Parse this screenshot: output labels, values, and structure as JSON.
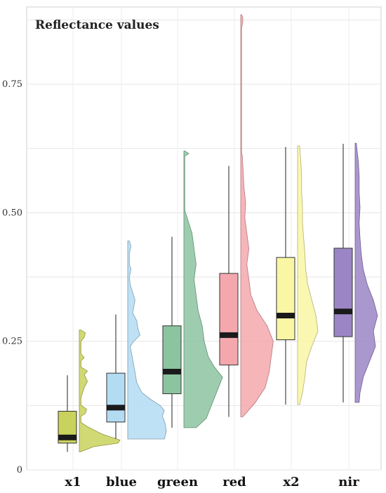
{
  "chart_data": {
    "type": "raincloud",
    "title": "Reflectance values",
    "xlabel": "",
    "ylabel": "",
    "ylim": [
      0,
      0.9
    ],
    "yticks": [
      0,
      0.25,
      0.5,
      0.75
    ],
    "ytick_labels": [
      "0",
      "0.25",
      "0.50",
      "0.75"
    ],
    "grid": true,
    "categories": [
      "x1",
      "blue",
      "green",
      "red",
      "x2",
      "nir"
    ],
    "series": [
      {
        "label": "x1",
        "color": "#c9d25c",
        "box": {
          "lower_whisker": 0.035,
          "q1": 0.052,
          "median": 0.063,
          "q3": 0.114,
          "upper_whisker": 0.184
        },
        "density": [
          [
            0.035,
            0.02
          ],
          [
            0.045,
            0.35
          ],
          [
            0.052,
            0.95
          ],
          [
            0.058,
            1.0
          ],
          [
            0.063,
            0.8
          ],
          [
            0.07,
            0.55
          ],
          [
            0.078,
            0.35
          ],
          [
            0.084,
            0.2
          ],
          [
            0.092,
            0.04
          ],
          [
            0.104,
            0.04
          ],
          [
            0.11,
            0.15
          ],
          [
            0.118,
            0.18
          ],
          [
            0.126,
            0.04
          ],
          [
            0.14,
            0.04
          ],
          [
            0.16,
            0.12
          ],
          [
            0.172,
            0.2
          ],
          [
            0.185,
            0.12
          ],
          [
            0.192,
            0.2
          ],
          [
            0.2,
            0.04
          ],
          [
            0.212,
            0.04
          ],
          [
            0.218,
            0.12
          ],
          [
            0.226,
            0.04
          ],
          [
            0.25,
            0.04
          ],
          [
            0.258,
            0.12
          ],
          [
            0.266,
            0.15
          ],
          [
            0.272,
            0.04
          ]
        ]
      },
      {
        "label": "blue",
        "color": "#b3dcf3",
        "box": {
          "lower_whisker": 0.06,
          "q1": 0.093,
          "median": 0.121,
          "q3": 0.188,
          "upper_whisker": 0.302
        },
        "density": [
          [
            0.06,
            0.9
          ],
          [
            0.075,
            0.95
          ],
          [
            0.09,
            0.92
          ],
          [
            0.105,
            0.85
          ],
          [
            0.115,
            0.9
          ],
          [
            0.125,
            0.8
          ],
          [
            0.135,
            0.6
          ],
          [
            0.15,
            0.35
          ],
          [
            0.17,
            0.22
          ],
          [
            0.19,
            0.18
          ],
          [
            0.215,
            0.12
          ],
          [
            0.24,
            0.06
          ],
          [
            0.25,
            0.15
          ],
          [
            0.262,
            0.3
          ],
          [
            0.275,
            0.25
          ],
          [
            0.29,
            0.22
          ],
          [
            0.305,
            0.12
          ],
          [
            0.33,
            0.18
          ],
          [
            0.345,
            0.12
          ],
          [
            0.36,
            0.06
          ],
          [
            0.375,
            0.04
          ],
          [
            0.39,
            0.08
          ],
          [
            0.4,
            0.04
          ],
          [
            0.42,
            0.04
          ],
          [
            0.435,
            0.08
          ],
          [
            0.445,
            0.04
          ]
        ]
      },
      {
        "label": "green",
        "color": "#8cc4a0",
        "box": {
          "lower_whisker": 0.082,
          "q1": 0.148,
          "median": 0.191,
          "q3": 0.28,
          "upper_whisker": 0.453
        },
        "density": [
          [
            0.082,
            0.3
          ],
          [
            0.1,
            0.55
          ],
          [
            0.12,
            0.65
          ],
          [
            0.14,
            0.75
          ],
          [
            0.16,
            0.85
          ],
          [
            0.18,
            0.95
          ],
          [
            0.2,
            0.75
          ],
          [
            0.22,
            0.6
          ],
          [
            0.25,
            0.5
          ],
          [
            0.28,
            0.45
          ],
          [
            0.31,
            0.35
          ],
          [
            0.34,
            0.3
          ],
          [
            0.37,
            0.25
          ],
          [
            0.4,
            0.3
          ],
          [
            0.43,
            0.25
          ],
          [
            0.46,
            0.2
          ],
          [
            0.48,
            0.12
          ],
          [
            0.5,
            0.04
          ],
          [
            0.505,
            0.02
          ],
          [
            0.61,
            0.02
          ],
          [
            0.615,
            0.12
          ],
          [
            0.62,
            0.02
          ]
        ]
      },
      {
        "label": "red",
        "color": "#f4a8ad",
        "box": {
          "lower_whisker": 0.103,
          "q1": 0.204,
          "median": 0.262,
          "q3": 0.382,
          "upper_whisker": 0.591
        },
        "density": [
          [
            0.103,
            0.05
          ],
          [
            0.13,
            0.35
          ],
          [
            0.16,
            0.6
          ],
          [
            0.19,
            0.7
          ],
          [
            0.22,
            0.75
          ],
          [
            0.25,
            0.8
          ],
          [
            0.28,
            0.65
          ],
          [
            0.31,
            0.4
          ],
          [
            0.34,
            0.25
          ],
          [
            0.37,
            0.2
          ],
          [
            0.4,
            0.15
          ],
          [
            0.43,
            0.2
          ],
          [
            0.46,
            0.15
          ],
          [
            0.49,
            0.1
          ],
          [
            0.52,
            0.12
          ],
          [
            0.55,
            0.08
          ],
          [
            0.58,
            0.06
          ],
          [
            0.61,
            0.04
          ],
          [
            0.618,
            0.02
          ],
          [
            0.86,
            0.02
          ],
          [
            0.87,
            0.05
          ],
          [
            0.88,
            0.05
          ],
          [
            0.885,
            0.02
          ]
        ]
      },
      {
        "label": "x2",
        "color": "#f9f6a4",
        "box": {
          "lower_whisker": 0.127,
          "q1": 0.253,
          "median": 0.3,
          "q3": 0.413,
          "upper_whisker": 0.628
        },
        "density": [
          [
            0.127,
            0.05
          ],
          [
            0.15,
            0.12
          ],
          [
            0.18,
            0.18
          ],
          [
            0.21,
            0.22
          ],
          [
            0.24,
            0.35
          ],
          [
            0.27,
            0.5
          ],
          [
            0.3,
            0.45
          ],
          [
            0.33,
            0.35
          ],
          [
            0.36,
            0.25
          ],
          [
            0.39,
            0.2
          ],
          [
            0.42,
            0.18
          ],
          [
            0.45,
            0.15
          ],
          [
            0.48,
            0.12
          ],
          [
            0.51,
            0.12
          ],
          [
            0.54,
            0.1
          ],
          [
            0.57,
            0.1
          ],
          [
            0.6,
            0.08
          ],
          [
            0.63,
            0.05
          ]
        ]
      },
      {
        "label": "nir",
        "color": "#9b85c5",
        "box": {
          "lower_whisker": 0.131,
          "q1": 0.259,
          "median": 0.308,
          "q3": 0.431,
          "upper_whisker": 0.634
        },
        "density": [
          [
            0.131,
            0.1
          ],
          [
            0.15,
            0.12
          ],
          [
            0.18,
            0.2
          ],
          [
            0.21,
            0.35
          ],
          [
            0.24,
            0.5
          ],
          [
            0.27,
            0.45
          ],
          [
            0.3,
            0.55
          ],
          [
            0.33,
            0.45
          ],
          [
            0.36,
            0.3
          ],
          [
            0.39,
            0.2
          ],
          [
            0.42,
            0.15
          ],
          [
            0.45,
            0.12
          ],
          [
            0.48,
            0.1
          ],
          [
            0.51,
            0.12
          ],
          [
            0.54,
            0.1
          ],
          [
            0.57,
            0.1
          ],
          [
            0.6,
            0.08
          ],
          [
            0.62,
            0.05
          ],
          [
            0.635,
            0.03
          ]
        ]
      }
    ]
  }
}
